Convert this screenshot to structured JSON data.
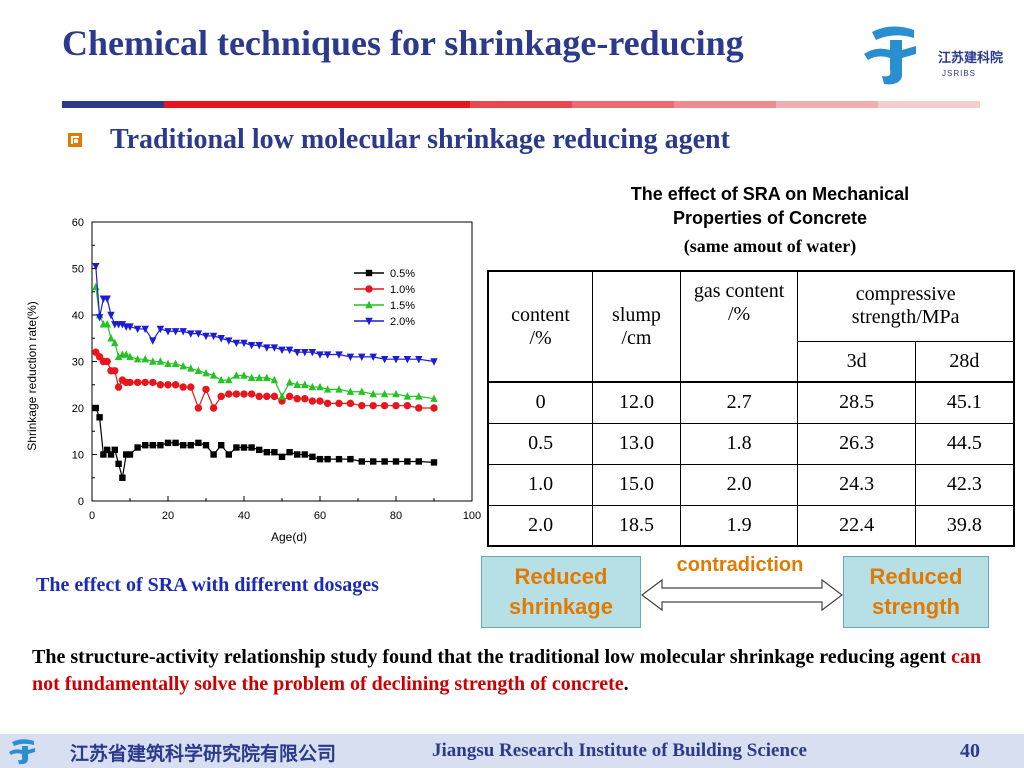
{
  "title": "Chemical techniques for shrinkage-reducing",
  "logo": {
    "icon": "jsribs-logo-icon",
    "cn_text": "江苏建科院",
    "en_text": "JSRIBS"
  },
  "subtitle": "Traditional low molecular shrinkage reducing agent",
  "chart_caption": "The effect of SRA with different dosages",
  "chart_data": {
    "type": "line",
    "title": "",
    "xlabel": "Age(d)",
    "ylabel": "Shrinkage reduction rate(%)",
    "xlim": [
      0,
      100
    ],
    "ylim": [
      0,
      60
    ],
    "xticks": [
      0,
      20,
      40,
      60,
      80,
      100
    ],
    "yticks": [
      0,
      10,
      20,
      30,
      40,
      50,
      60
    ],
    "grid": false,
    "legend_position": "upper-right",
    "series": [
      {
        "name": "0.5%",
        "color": "#000000",
        "marker": "square",
        "x": [
          1,
          2,
          3,
          4,
          5,
          6,
          7,
          8,
          9,
          10,
          12,
          14,
          16,
          18,
          20,
          22,
          24,
          26,
          28,
          30,
          32,
          34,
          36,
          38,
          40,
          42,
          44,
          46,
          48,
          50,
          52,
          54,
          56,
          58,
          60,
          62,
          65,
          68,
          71,
          74,
          77,
          80,
          83,
          86,
          90
        ],
        "y": [
          20,
          18,
          10,
          11,
          10,
          11,
          8,
          5,
          10,
          10,
          11.5,
          12,
          12,
          12,
          12.5,
          12.5,
          12,
          12,
          12.5,
          12,
          10,
          12,
          10,
          11.5,
          11.5,
          11.5,
          11,
          10.5,
          10.5,
          9.5,
          10.5,
          10,
          10,
          9.5,
          9,
          9,
          9,
          9,
          8.5,
          8.5,
          8.5,
          8.5,
          8.5,
          8.5,
          8.3
        ]
      },
      {
        "name": "1.0%",
        "color": "#e8161c",
        "marker": "circle",
        "x": [
          1,
          2,
          3,
          4,
          5,
          6,
          7,
          8,
          9,
          10,
          12,
          14,
          16,
          18,
          20,
          22,
          24,
          26,
          28,
          30,
          32,
          34,
          36,
          38,
          40,
          42,
          44,
          46,
          48,
          50,
          52,
          54,
          56,
          58,
          60,
          62,
          65,
          68,
          71,
          74,
          77,
          80,
          83,
          86,
          90
        ],
        "y": [
          32,
          31,
          30,
          30,
          28,
          28,
          24.5,
          26,
          25.5,
          25.5,
          25.5,
          25.5,
          25.5,
          25,
          25,
          25,
          24.5,
          24.5,
          20,
          24,
          20,
          22.5,
          23,
          23,
          23,
          23,
          22.5,
          22.5,
          22.5,
          21.5,
          22.5,
          22,
          22,
          21.5,
          21.5,
          21,
          21,
          21,
          20.5,
          20.5,
          20.5,
          20.5,
          20.5,
          20,
          20
        ]
      },
      {
        "name": "1.5%",
        "color": "#22c322",
        "marker": "triangle",
        "x": [
          1,
          2,
          3,
          4,
          5,
          6,
          7,
          8,
          9,
          10,
          12,
          14,
          16,
          18,
          20,
          22,
          24,
          26,
          28,
          30,
          32,
          34,
          36,
          38,
          40,
          42,
          44,
          46,
          48,
          50,
          52,
          54,
          56,
          58,
          60,
          62,
          65,
          68,
          71,
          74,
          77,
          80,
          83,
          86,
          90
        ],
        "y": [
          46,
          40,
          38,
          38,
          35,
          34,
          31,
          31.5,
          31.5,
          31,
          30.5,
          30.5,
          30,
          30,
          29.5,
          29.5,
          29,
          28.5,
          28,
          27.5,
          27,
          26,
          26,
          27,
          27,
          26.5,
          26.5,
          26.5,
          26,
          22.5,
          25.5,
          25,
          25,
          24.5,
          24.5,
          24,
          24,
          23.5,
          23.5,
          23,
          23,
          23,
          22.5,
          22.5,
          22
        ]
      },
      {
        "name": "2.0%",
        "color": "#1c1cd6",
        "marker": "triangle-down",
        "x": [
          1,
          2,
          3,
          4,
          5,
          6,
          7,
          8,
          9,
          10,
          12,
          14,
          16,
          18,
          20,
          22,
          24,
          26,
          28,
          30,
          32,
          34,
          36,
          38,
          40,
          42,
          44,
          46,
          48,
          50,
          52,
          54,
          56,
          58,
          60,
          62,
          65,
          68,
          71,
          74,
          77,
          80,
          83,
          86,
          90
        ],
        "y": [
          50.5,
          39.5,
          43.5,
          43.5,
          40,
          38,
          38,
          38,
          37.5,
          37.5,
          37,
          37,
          34.5,
          37,
          36.5,
          36.5,
          36.5,
          36,
          36,
          35.5,
          35.5,
          35,
          34.5,
          34,
          34,
          33.5,
          33.5,
          33,
          33,
          32.5,
          32.5,
          32,
          32,
          32,
          31.5,
          31.5,
          31.5,
          31,
          31,
          31,
          30.5,
          30.5,
          30.5,
          30.5,
          30
        ]
      }
    ]
  },
  "table": {
    "title_line1": "The effect of SRA on Mechanical",
    "title_line2": "Properties of Concrete",
    "subtitle": "(same amout of water)",
    "headers": {
      "content": [
        "content",
        "/%"
      ],
      "slump": [
        "slump",
        "/cm"
      ],
      "gas": [
        "gas content",
        "/%"
      ],
      "compressive": [
        "compressive",
        "strength/MPa"
      ],
      "d3": "3d",
      "d28": "28d"
    },
    "rows": [
      [
        "0",
        "12.0",
        "2.7",
        "28.5",
        "45.1"
      ],
      [
        "0.5",
        "13.0",
        "1.8",
        "26.3",
        "44.5"
      ],
      [
        "1.0",
        "15.0",
        "2.0",
        "24.3",
        "42.3"
      ],
      [
        "2.0",
        "18.5",
        "1.9",
        "22.4",
        "39.8"
      ]
    ]
  },
  "boxes": {
    "left": [
      "Reduced",
      "shrinkage"
    ],
    "right": [
      "Reduced",
      "strength"
    ],
    "middle": "contradiction"
  },
  "conclusion": {
    "part1": "The structure-activity relationship study found that the traditional low molecular shrinkage reducing agent ",
    "part2": "can not fundamentally solve the problem of declining strength of concrete",
    "part3": "."
  },
  "footer": {
    "cn": "江苏省建筑科学研究院有限公司",
    "en": "Jiangsu Research Institute of Building Science",
    "page": "40"
  },
  "colors": {
    "title": "#2b3a8c",
    "accent_orange": "#e07a00",
    "stripe": [
      "#2b3a8c",
      "#e8161c",
      "#e8161c",
      "#e8161c",
      "#ea4850",
      "#ec6a70",
      "#ef8a8e",
      "#f2aeb0",
      "#f6ccce"
    ],
    "box_fill": "#b7dfe6",
    "highlight_red": "#cc0000"
  }
}
